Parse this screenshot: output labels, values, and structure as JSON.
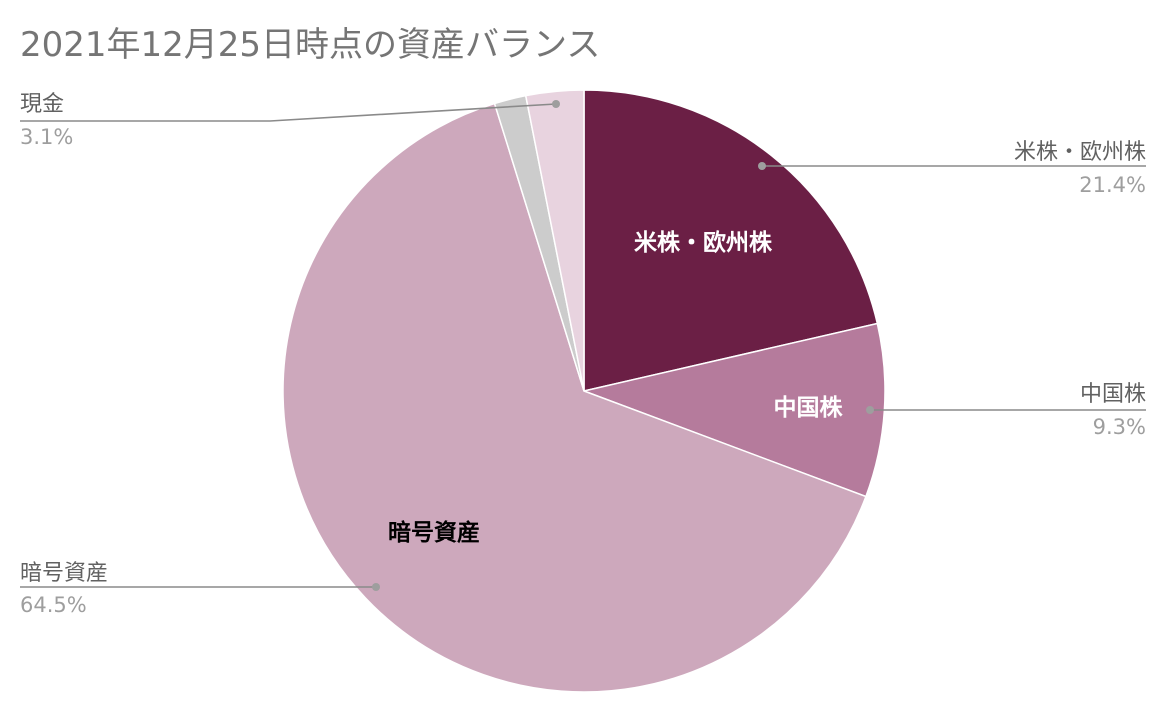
{
  "chart_data": {
    "type": "pie",
    "title": "2021年12月25日時点の資産バランス",
    "slices": [
      {
        "label": "米株・欧州株",
        "value": 21.4,
        "display": "21.4%",
        "color": "#6b1f45",
        "inner_label": "米株・欧州株",
        "inner_label_color": "#ffffff"
      },
      {
        "label": "中国株",
        "value": 9.3,
        "display": "9.3%",
        "color": "#b57b9c",
        "inner_label": "中国株",
        "inner_label_color": "#ffffff"
      },
      {
        "label": "暗号資産",
        "value": 64.5,
        "display": "64.5%",
        "color": "#cda8bc",
        "inner_label": "暗号資産",
        "inner_label_color": "#000000"
      },
      {
        "label": "",
        "value": 1.7,
        "display": "",
        "color": "#cccccc",
        "inner_label": "",
        "inner_label_color": "#000000"
      },
      {
        "label": "現金",
        "value": 3.1,
        "display": "3.1%",
        "color": "#e8d3df",
        "inner_label": "",
        "inner_label_color": "#000000"
      }
    ],
    "start_angle_deg": 0,
    "direction": "clockwise",
    "legend": "callout labels with leader lines"
  }
}
